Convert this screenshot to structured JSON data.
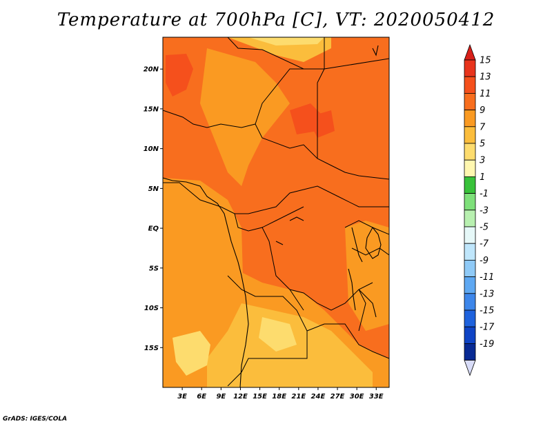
{
  "title": "Temperature at 700hPa [C], VT: 2020050412",
  "credit": "GrADS: IGES/COLA",
  "map": {
    "lon_range": [
      0,
      35
    ],
    "lat_range": [
      -20,
      24
    ],
    "lat_ticks": [
      {
        "value": 20,
        "label": "20N"
      },
      {
        "value": 15,
        "label": "15N"
      },
      {
        "value": 10,
        "label": "10N"
      },
      {
        "value": 5,
        "label": "5N"
      },
      {
        "value": 0,
        "label": "EQ"
      },
      {
        "value": -5,
        "label": "5S"
      },
      {
        "value": -10,
        "label": "10S"
      },
      {
        "value": -15,
        "label": "15S"
      }
    ],
    "lon_ticks": [
      {
        "value": 3,
        "label": "3E"
      },
      {
        "value": 6,
        "label": "6E"
      },
      {
        "value": 9,
        "label": "9E"
      },
      {
        "value": 12,
        "label": "12E"
      },
      {
        "value": 15,
        "label": "15E"
      },
      {
        "value": 18,
        "label": "18E"
      },
      {
        "value": 21,
        "label": "21E"
      },
      {
        "value": 24,
        "label": "24E"
      },
      {
        "value": 27,
        "label": "27E"
      },
      {
        "value": 30,
        "label": "30E"
      },
      {
        "value": 33,
        "label": "33E"
      }
    ]
  },
  "colorbar": {
    "levels": [
      {
        "label": "15",
        "color": "#e8341c"
      },
      {
        "label": "13",
        "color": "#f5501c"
      },
      {
        "label": "11",
        "color": "#f86e1e"
      },
      {
        "label": "9",
        "color": "#fa9a22"
      },
      {
        "label": "7",
        "color": "#fbbd3c"
      },
      {
        "label": "5",
        "color": "#fddc6e"
      },
      {
        "label": "3",
        "color": "#fff7b0"
      },
      {
        "label": "1",
        "color": "#38c23a"
      },
      {
        "label": "-1",
        "color": "#7ee07a"
      },
      {
        "label": "-3",
        "color": "#b8f0b0"
      },
      {
        "label": "-5",
        "color": "#e6f8f8"
      },
      {
        "label": "-7",
        "color": "#bfe6fb"
      },
      {
        "label": "-9",
        "color": "#8fcaf7"
      },
      {
        "label": "-11",
        "color": "#5ea8f2"
      },
      {
        "label": "-13",
        "color": "#3d86ea"
      },
      {
        "label": "-15",
        "color": "#1e62dd"
      },
      {
        "label": "-17",
        "color": "#0f44c5"
      },
      {
        "label": "-19",
        "color": "#082a94"
      }
    ],
    "top_cap_color": "#d8201a",
    "bottom_cap_color": "#d8dcf8",
    "end_color": "#071563"
  }
}
